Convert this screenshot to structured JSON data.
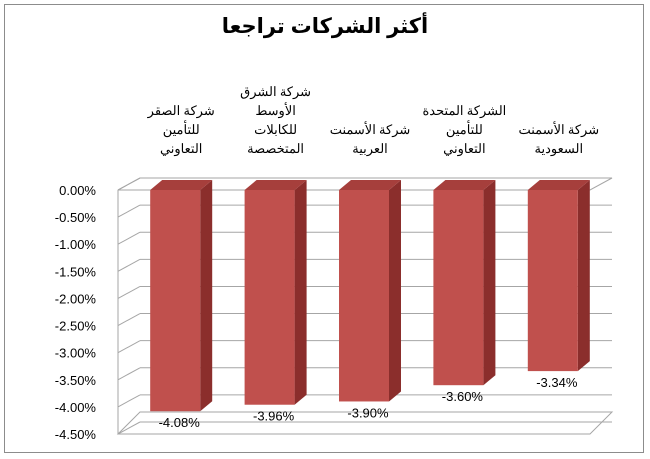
{
  "chart_data": {
    "type": "bar",
    "title": "أكثر الشركات تراجعا",
    "categories": [
      [
        "شركة الصقر",
        "للتأمين",
        "التعاوني"
      ],
      [
        "شركة الشرق",
        "الأوسط",
        "للكابلات",
        "المتخصصة"
      ],
      [
        "شركة الأسمنت",
        "العربية"
      ],
      [
        "الشركة المتحدة",
        "للتأمين",
        "التعاوني"
      ],
      [
        "شركة الأسمنت",
        "السعودية"
      ]
    ],
    "values": [
      -4.08,
      -3.96,
      -3.9,
      -3.6,
      -3.34
    ],
    "data_labels": [
      "-4.08%",
      "-3.96%",
      "-3.90%",
      "-3.60%",
      "-3.34%"
    ],
    "yticks": [
      "0.00%",
      "-0.50%",
      "-1.00%",
      "-1.50%",
      "-2.00%",
      "-2.50%",
      "-3.00%",
      "-3.50%",
      "-4.00%",
      "-4.50%"
    ],
    "ylim": [
      -4.5,
      0
    ],
    "grid": true,
    "bar_color": "#c0504d",
    "bar_side_color": "#8b2e2c",
    "bar_top_color": "#a63f3c"
  }
}
